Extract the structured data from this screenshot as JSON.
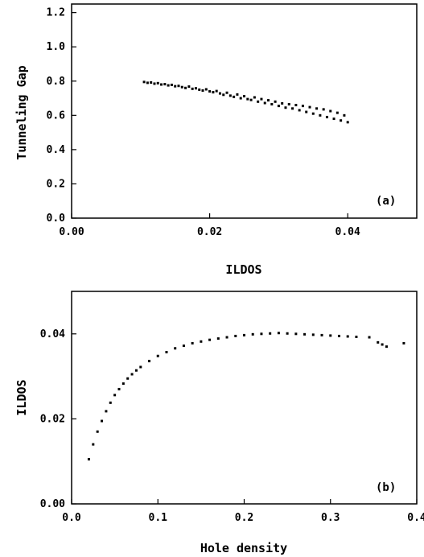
{
  "chart_data": [
    {
      "type": "scatter",
      "panel_label": "(a)",
      "xlabel": "ILDOS",
      "ylabel": "Tunneling Gap",
      "xlim": [
        0.0,
        0.05
      ],
      "ylim": [
        0.0,
        1.25
      ],
      "xticks": [
        "0.00",
        "0.02",
        "0.04"
      ],
      "xtick_values": [
        0.0,
        0.02,
        0.04
      ],
      "yticks": [
        "0.0",
        "0.2",
        "0.4",
        "0.6",
        "0.8",
        "1.0",
        "1.2"
      ],
      "ytick_values": [
        0.0,
        0.2,
        0.4,
        0.6,
        0.8,
        1.0,
        1.2
      ],
      "grid": false,
      "marker_color": "#000000",
      "points": [
        [
          0.0105,
          0.795
        ],
        [
          0.011,
          0.79
        ],
        [
          0.0115,
          0.792
        ],
        [
          0.012,
          0.785
        ],
        [
          0.0125,
          0.788
        ],
        [
          0.013,
          0.78
        ],
        [
          0.0135,
          0.782
        ],
        [
          0.014,
          0.775
        ],
        [
          0.0145,
          0.778
        ],
        [
          0.015,
          0.77
        ],
        [
          0.0155,
          0.772
        ],
        [
          0.016,
          0.765
        ],
        [
          0.0165,
          0.76
        ],
        [
          0.017,
          0.768
        ],
        [
          0.0175,
          0.755
        ],
        [
          0.018,
          0.758
        ],
        [
          0.0185,
          0.75
        ],
        [
          0.019,
          0.745
        ],
        [
          0.0195,
          0.752
        ],
        [
          0.02,
          0.74
        ],
        [
          0.0205,
          0.735
        ],
        [
          0.021,
          0.742
        ],
        [
          0.0215,
          0.728
        ],
        [
          0.022,
          0.72
        ],
        [
          0.0225,
          0.732
        ],
        [
          0.023,
          0.715
        ],
        [
          0.0235,
          0.708
        ],
        [
          0.024,
          0.722
        ],
        [
          0.0245,
          0.7
        ],
        [
          0.025,
          0.712
        ],
        [
          0.0255,
          0.695
        ],
        [
          0.026,
          0.69
        ],
        [
          0.0265,
          0.705
        ],
        [
          0.027,
          0.68
        ],
        [
          0.0275,
          0.695
        ],
        [
          0.028,
          0.672
        ],
        [
          0.0285,
          0.688
        ],
        [
          0.029,
          0.665
        ],
        [
          0.0295,
          0.68
        ],
        [
          0.03,
          0.655
        ],
        [
          0.0305,
          0.67
        ],
        [
          0.031,
          0.645
        ],
        [
          0.0315,
          0.665
        ],
        [
          0.032,
          0.64
        ],
        [
          0.0325,
          0.66
        ],
        [
          0.033,
          0.63
        ],
        [
          0.0335,
          0.655
        ],
        [
          0.034,
          0.62
        ],
        [
          0.0345,
          0.648
        ],
        [
          0.035,
          0.61
        ],
        [
          0.0355,
          0.64
        ],
        [
          0.036,
          0.6
        ],
        [
          0.0365,
          0.635
        ],
        [
          0.037,
          0.59
        ],
        [
          0.0375,
          0.625
        ],
        [
          0.038,
          0.58
        ],
        [
          0.0385,
          0.615
        ],
        [
          0.039,
          0.57
        ],
        [
          0.0395,
          0.6
        ],
        [
          0.04,
          0.56
        ]
      ]
    },
    {
      "type": "scatter",
      "panel_label": "(b)",
      "xlabel": "Hole density",
      "ylabel": "ILDOS",
      "xlim": [
        0.0,
        0.4
      ],
      "ylim": [
        0.0,
        0.05
      ],
      "xticks": [
        "0.0",
        "0.1",
        "0.2",
        "0.3",
        "0.4"
      ],
      "xtick_values": [
        0.0,
        0.1,
        0.2,
        0.3,
        0.4
      ],
      "yticks": [
        "0.00",
        "0.02",
        "0.04"
      ],
      "ytick_values": [
        0.0,
        0.02,
        0.04
      ],
      "grid": false,
      "marker_color": "#000000",
      "points": [
        [
          0.02,
          0.0105
        ],
        [
          0.025,
          0.014
        ],
        [
          0.03,
          0.017
        ],
        [
          0.035,
          0.0195
        ],
        [
          0.04,
          0.0218
        ],
        [
          0.045,
          0.0238
        ],
        [
          0.05,
          0.0256
        ],
        [
          0.055,
          0.027
        ],
        [
          0.06,
          0.0283
        ],
        [
          0.065,
          0.0295
        ],
        [
          0.07,
          0.0305
        ],
        [
          0.075,
          0.0314
        ],
        [
          0.08,
          0.0322
        ],
        [
          0.09,
          0.0336
        ],
        [
          0.1,
          0.0348
        ],
        [
          0.11,
          0.0357
        ],
        [
          0.12,
          0.0366
        ],
        [
          0.13,
          0.0372
        ],
        [
          0.14,
          0.0378
        ],
        [
          0.15,
          0.0382
        ],
        [
          0.16,
          0.0386
        ],
        [
          0.17,
          0.0389
        ],
        [
          0.18,
          0.0392
        ],
        [
          0.19,
          0.0395
        ],
        [
          0.2,
          0.0397
        ],
        [
          0.21,
          0.0399
        ],
        [
          0.22,
          0.04
        ],
        [
          0.23,
          0.0401
        ],
        [
          0.24,
          0.0402
        ],
        [
          0.25,
          0.0401
        ],
        [
          0.26,
          0.04
        ],
        [
          0.27,
          0.0399
        ],
        [
          0.28,
          0.0398
        ],
        [
          0.29,
          0.0397
        ],
        [
          0.3,
          0.0396
        ],
        [
          0.31,
          0.0395
        ],
        [
          0.32,
          0.0394
        ],
        [
          0.33,
          0.0393
        ],
        [
          0.345,
          0.0392
        ],
        [
          0.355,
          0.038
        ],
        [
          0.36,
          0.0375
        ],
        [
          0.365,
          0.037
        ],
        [
          0.385,
          0.0378
        ]
      ]
    }
  ]
}
